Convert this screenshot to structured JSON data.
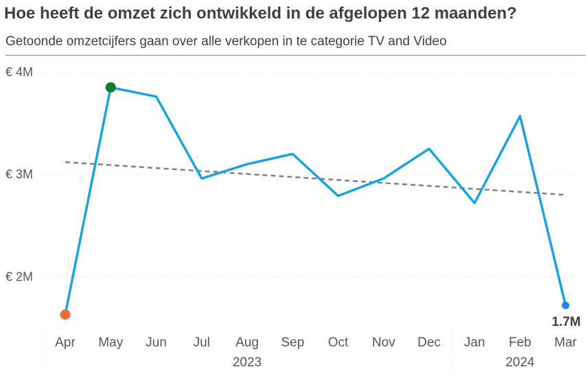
{
  "title": "Hoe heeft de omzet zich ontwikkeld in de afgelopen 12 maanden?",
  "subtitle": "Getoonde omzetcijfers gaan over alle verkopen in te categorie TV and Video",
  "colors": {
    "line": "#1BA1E2",
    "trend": "#7F7F7F",
    "min_marker": "#E8703A",
    "max_marker": "#147E26",
    "last_marker": "#1E88E5"
  },
  "chart_data": {
    "type": "line",
    "categories": [
      "Apr",
      "May",
      "Jun",
      "Jul",
      "Aug",
      "Sep",
      "Oct",
      "Nov",
      "Dec",
      "Jan",
      "Feb",
      "Mar"
    ],
    "years": [
      {
        "label": "2023",
        "from": 0,
        "to": 8
      },
      {
        "label": "2024",
        "from": 9,
        "to": 11
      }
    ],
    "series": [
      {
        "values": [
          1.63,
          3.85,
          3.76,
          2.96,
          3.1,
          3.2,
          2.79,
          2.96,
          3.25,
          2.72,
          3.57,
          1.72
        ]
      }
    ],
    "trendline": {
      "start": 3.12,
      "end": 2.8,
      "style": "dashed"
    },
    "markers": {
      "min_index": 0,
      "max_index": 1,
      "last_index": 11
    },
    "end_label": "1.7M",
    "yticks": [
      {
        "value": 2,
        "label": "€ 2M"
      },
      {
        "value": 3,
        "label": "€ 3M"
      },
      {
        "value": 4,
        "label": "€ 4M"
      }
    ],
    "ylim": [
      1.5,
      4.0
    ],
    "grid": true,
    "xlabel": "",
    "ylabel": ""
  }
}
